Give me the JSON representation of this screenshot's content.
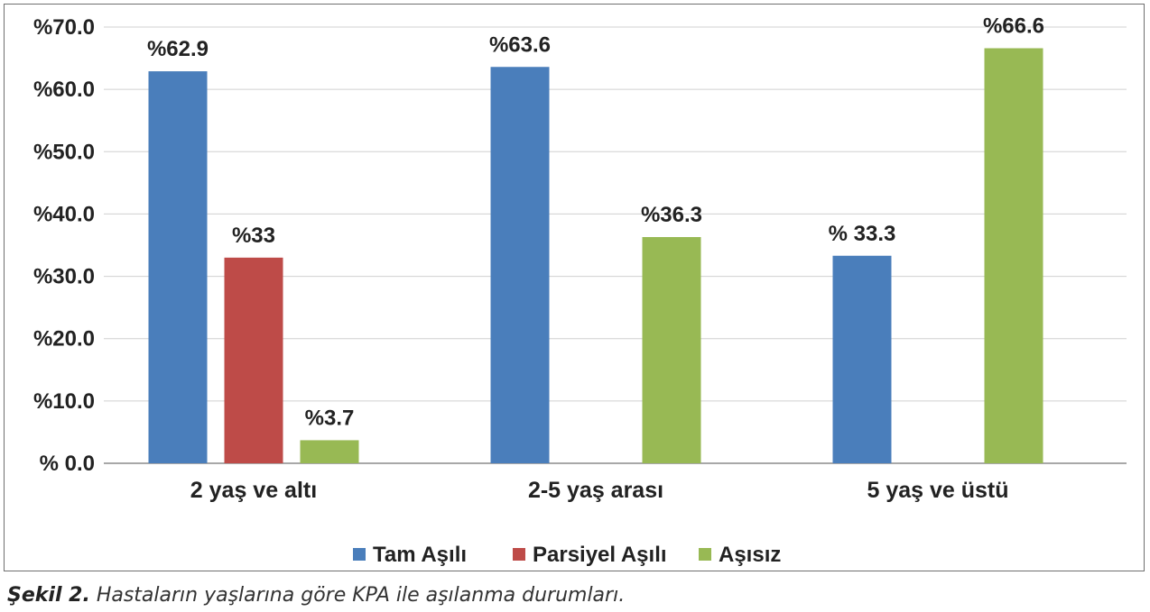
{
  "chart_data": {
    "type": "bar",
    "categories": [
      "2 yaş ve altı",
      "2-5 yaş arası",
      "5 yaş ve üstü"
    ],
    "series": [
      {
        "name": "Tam Aşılı",
        "color": "#4a7ebb",
        "values": [
          62.9,
          63.6,
          33.3
        ],
        "labels": [
          "%62.9",
          "%63.6",
          "% 33.3"
        ]
      },
      {
        "name": "Parsiyel Aşılı",
        "color": "#be4b48",
        "values": [
          33,
          null,
          null
        ],
        "labels": [
          "%33",
          null,
          null
        ]
      },
      {
        "name": "Aşısız",
        "color": "#98b954",
        "values": [
          3.7,
          36.3,
          66.6
        ],
        "labels": [
          "%3.7",
          "%36.3",
          "%66.6"
        ]
      }
    ],
    "ylim": [
      0,
      70
    ],
    "yticks": [
      0,
      10,
      20,
      30,
      40,
      50,
      60,
      70
    ],
    "ytick_labels": [
      "% 0.0",
      "%10.0",
      "%20.0",
      "%30.0",
      "%40.0",
      "%50.0",
      "%60.0",
      "%70.0"
    ],
    "grid": true,
    "legend_position": "bottom"
  },
  "caption": {
    "label": "Şekil 2.",
    "text": "Hastaların yaşlarına göre KPA ile aşılanma durumları."
  }
}
